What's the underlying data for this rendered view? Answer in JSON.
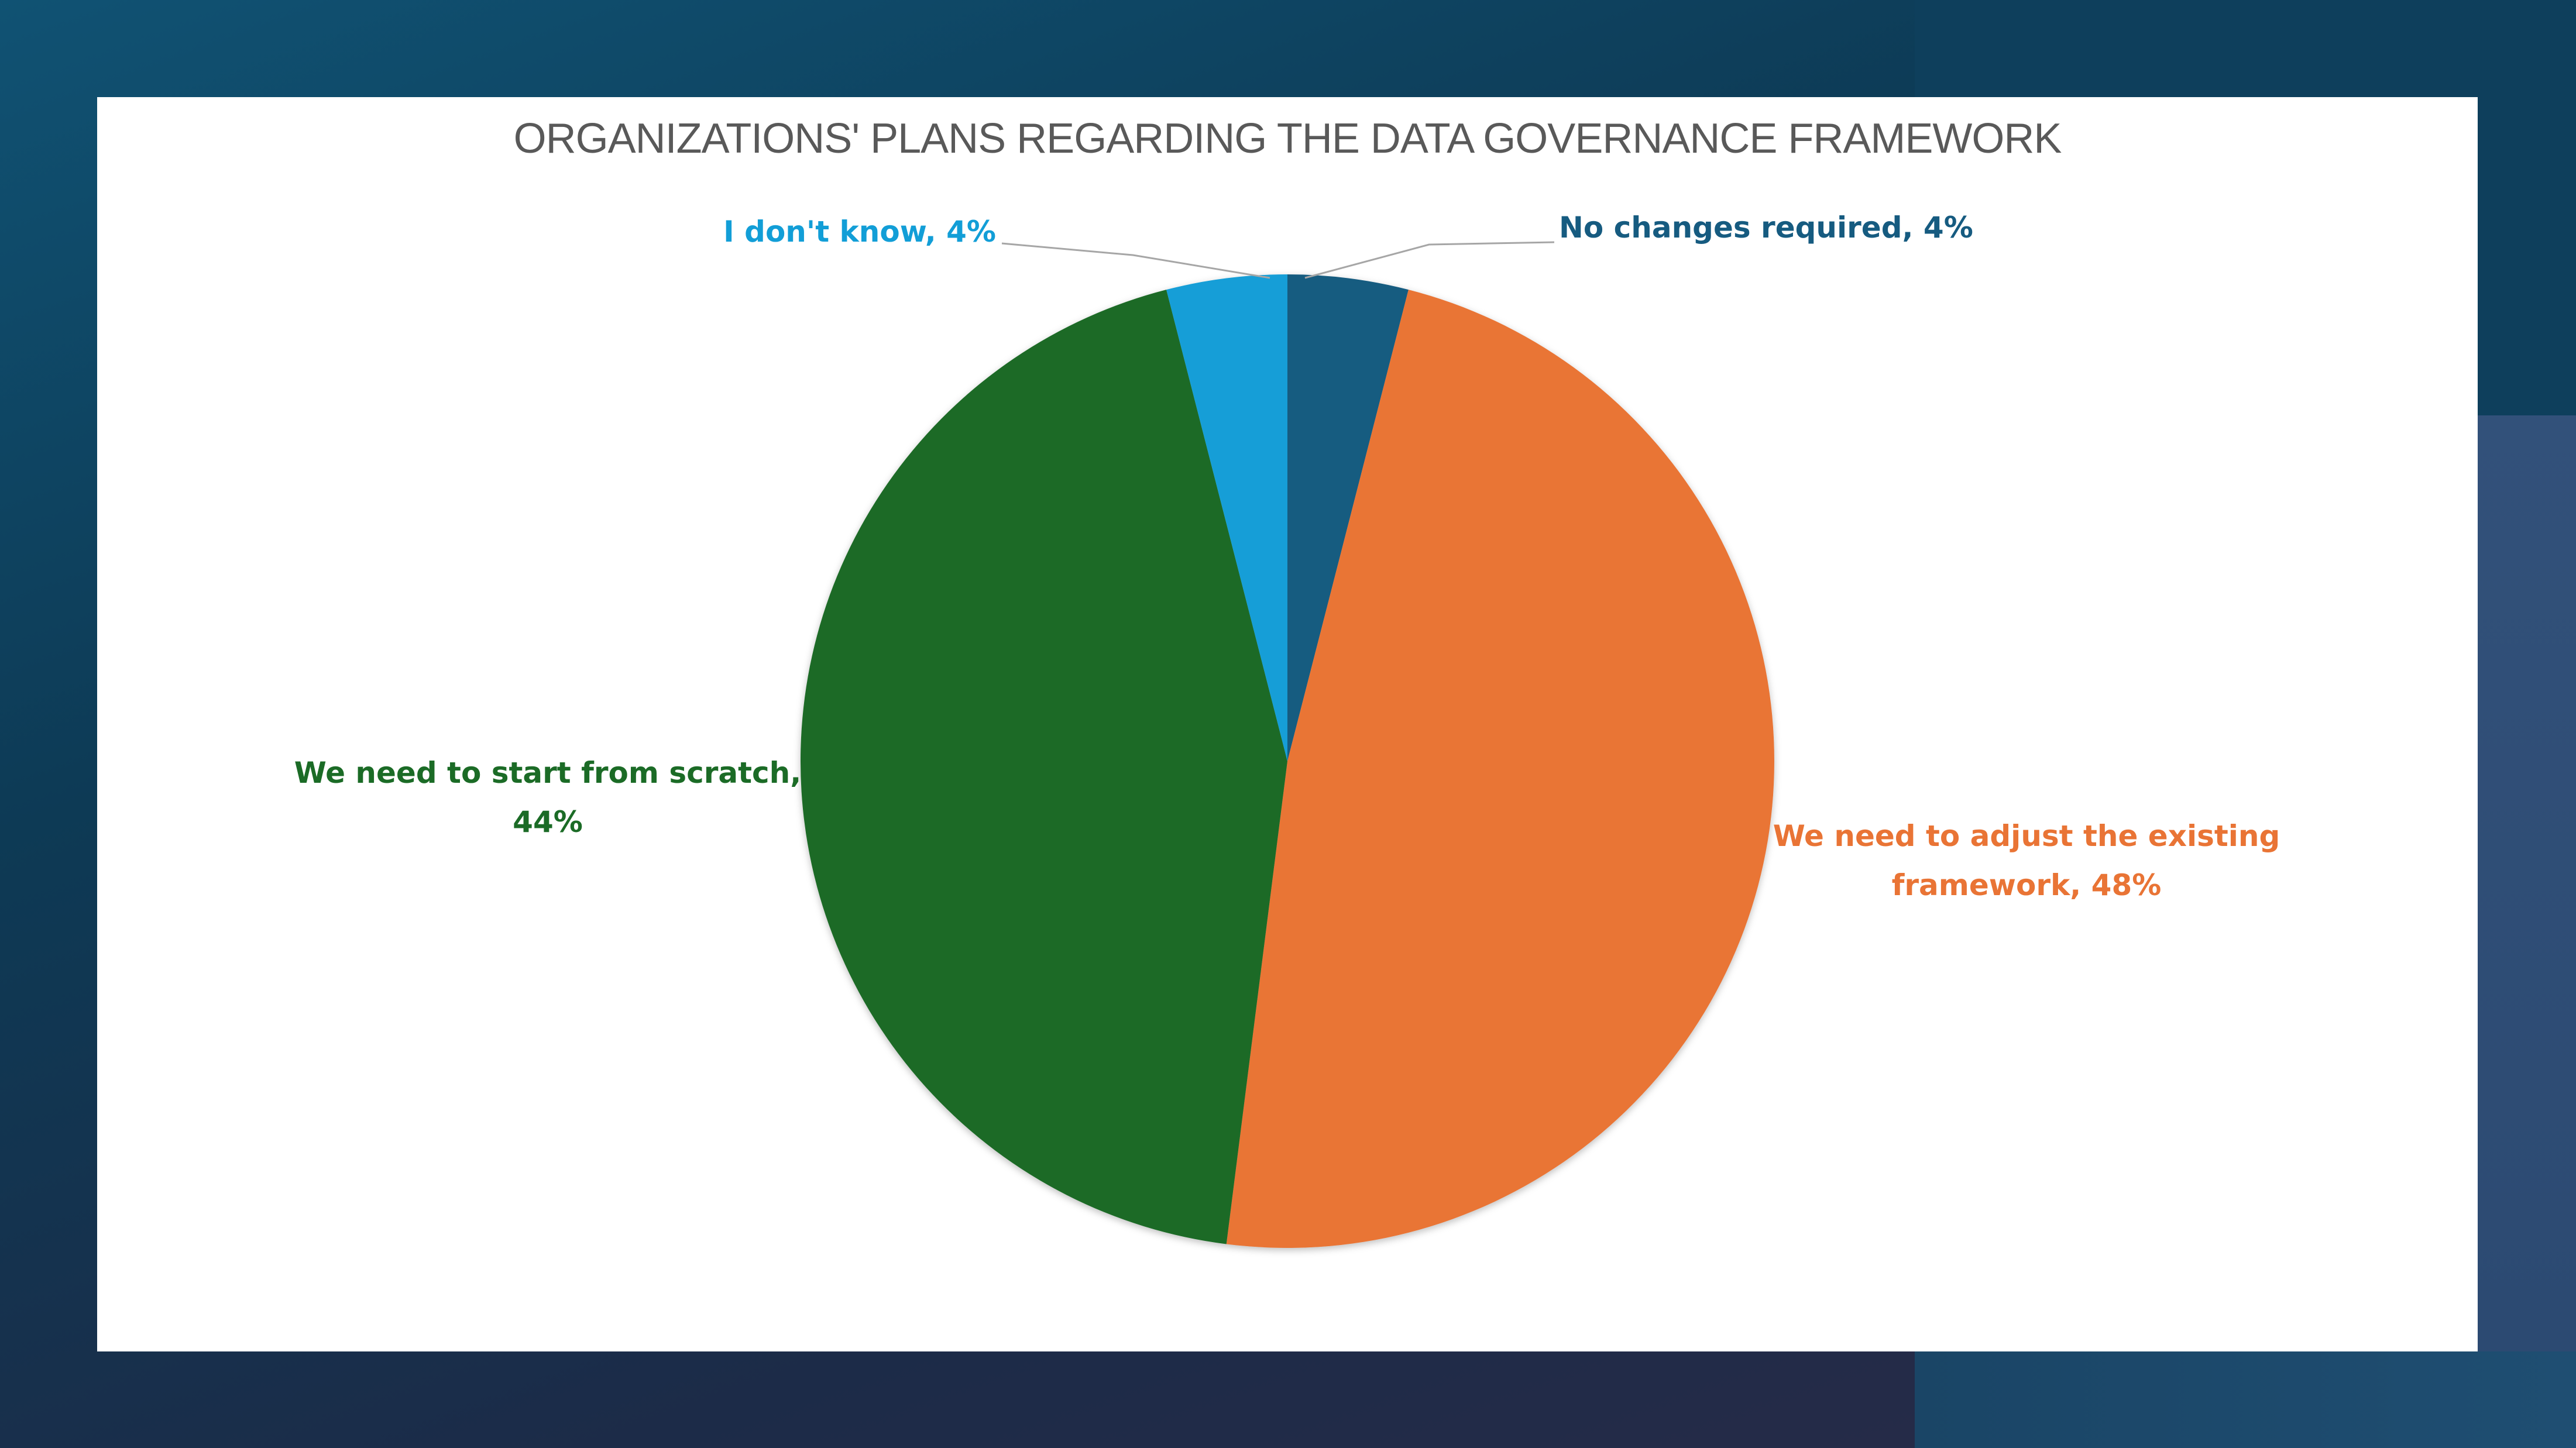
{
  "chart_data": {
    "type": "pie",
    "title": "ORGANIZATIONS' PLANS REGARDING THE DATA GOVERNANCE FRAMEWORK",
    "slices": [
      {
        "label": "No changes required, 4%",
        "value": 4,
        "color": "#165b80"
      },
      {
        "label": "We need to adjust the existing framework, 48%",
        "value": 48,
        "color": "#e97435"
      },
      {
        "label": "We need to start from scratch, 44%",
        "value": 44,
        "color": "#1b6b26"
      },
      {
        "label": "I don't know, 4%",
        "value": 4,
        "color": "#129ed7"
      }
    ],
    "label_lines": [
      [
        "No changes required, 4%"
      ],
      [
        "We need to adjust the existing",
        "framework, 48%"
      ],
      [
        "We need to start from scratch,",
        "44%"
      ],
      [
        "I don't know, 4%"
      ]
    ]
  }
}
